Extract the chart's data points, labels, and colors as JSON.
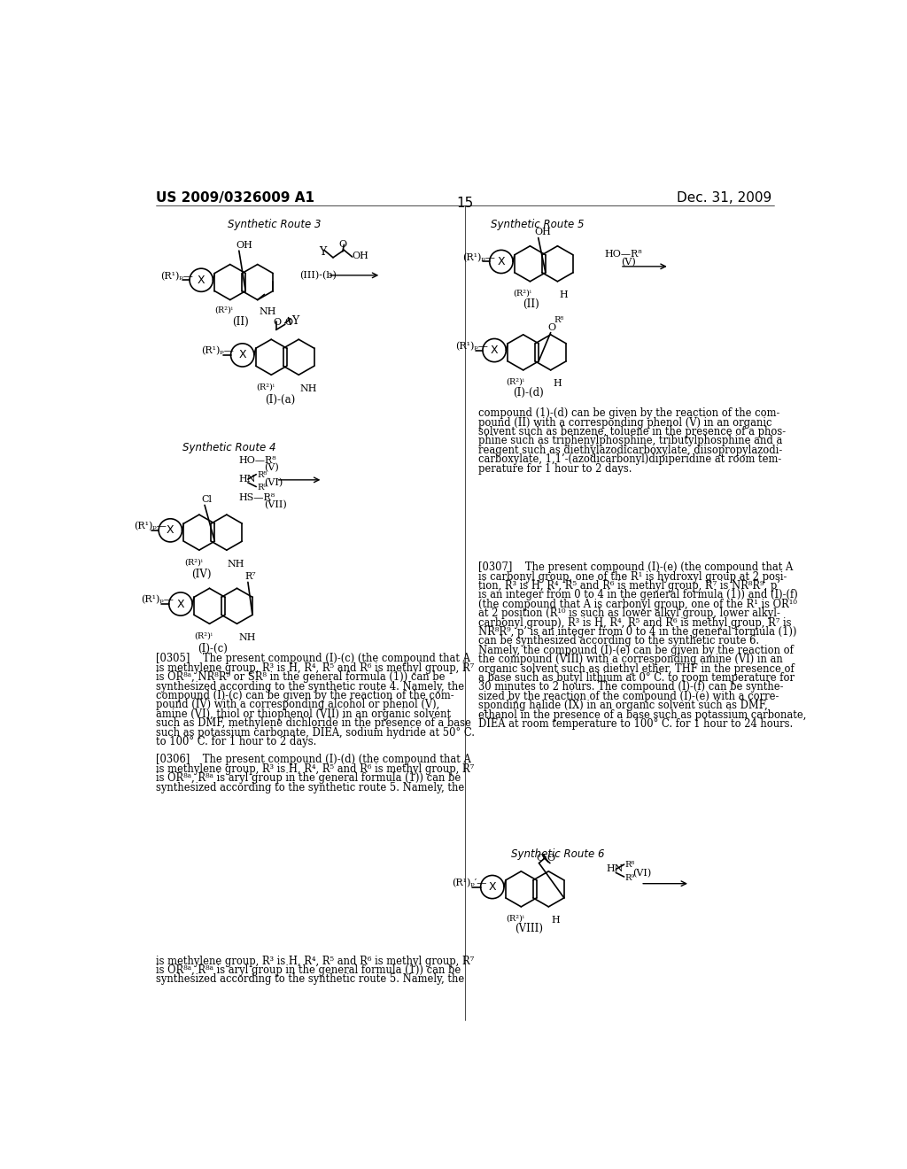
{
  "page_number": "15",
  "patent_number": "US 2009/0326009 A1",
  "date": "Dec. 31, 2009",
  "background_color": "#ffffff",
  "text_color": "#000000",
  "p305_lines": [
    "[0305]    The present compound (I)-(c) (the compound that A",
    "is methylene group, R³ is H, R⁴, R⁵ and R⁶ is methyl group, R⁷",
    "is OR⁸ᵃ, NR⁸R⁹ or SR⁸ in the general formula (1)) can be",
    "synthesized according to the synthetic route 4. Namely, the",
    "compound (I)-(c) can be given by the reaction of the com-",
    "pound (IV) with a corresponding alcohol or phenol (V),",
    "amine (VI), thiol or thiophenol (VII) in an organic solvent",
    "such as DMF, methylene dichloride in the presence of a base",
    "such as potassium carbonate, DIEA, sodium hydride at 50° C.",
    "to 100° C. for 1 hour to 2 days."
  ],
  "p306_lines": [
    "[0306]    The present compound (I)-(d) (the compound that A",
    "is methylene group, R³ is H, R⁴, R⁵ and R⁶ is methyl group, R⁷",
    "is OR⁸ᵃ, R⁸ᵃ is aryl group in the general formula (1)) can be",
    "synthesized according to the synthetic route 5. Namely, the"
  ],
  "p306b_lines": [
    "is methylene group, R³ is H, R⁴, R⁵ and R⁶ is methyl group, R⁷",
    "is OR⁸ᵃ, R⁸ᵃ is aryl group in the general formula (1)) can be",
    "synthesized according to the synthetic route 5. Namely, the"
  ],
  "p306r_lines": [
    "compound (1)-(d) can be given by the reaction of the com-",
    "pound (II) with a corresponding phenol (V) in an organic",
    "solvent such as benzene, toluene in the presence of a phos-",
    "phine such as triphenylphosphine, tributylphosphine and a",
    "reagent such as diethylazodicarboxylate, diisopropylazodi-",
    "carboxylate, 1,1’-(azodicarbonyl)dipiperidine at room tem-",
    "perature for 1 hour to 2 days."
  ],
  "p307_lines": [
    "[0307]    The present compound (I)-(e) (the compound that A",
    "is carbonyl group, one of the R¹ is hydroxyl group at 2 posi-",
    "tion, R³ is H, R⁴, R⁵ and R⁶ is methyl group, R⁷ is NR⁸R⁹, p’",
    "is an integer from 0 to 4 in the general formula (1)) and (I)-(f)",
    "(the compound that A is carbonyl group, one of the R¹ is OR¹⁰",
    "at 2 position (R¹⁰ is such as lower alkyl group, lower alkyl-",
    "carbonyl group), R³ is H, R⁴, R⁵ and R⁶ is methyl group, R⁷ is",
    "NR⁸R⁹, p’ is an integer from 0 to 4 in the general formula (1))",
    "can be synthesized according to the synthetic route 6.",
    "Namely, the compound (I)-(e) can be given by the reaction of",
    "the compound (VIII) with a corresponding amine (VI) in an",
    "organic solvent such as diethyl ether, THF in the presence of",
    "a base such as butyl lithium at 0° C. to room temperature for",
    "30 minutes to 2 hours. The compound (I)-(f) can be synthe-",
    "sized by the reaction of the compound (I)-(e) with a corre-",
    "sponding halide (IX) in an organic solvent such as DMF,",
    "ethanol in the presence of a base such as potassium carbonate,",
    "DIEA at room temperature to 100° C. for 1 hour to 24 hours."
  ],
  "r1p": "(R¹)ₚ—",
  "r1p_prime": "(R¹)ₚ′—",
  "r2q": "(R²)ⁱ",
  "r3": "R³",
  "r7": "R⁷",
  "r8": "R⁸",
  "r9": "R⁹",
  "ho_r8": "HO—R⁸",
  "hs_r8": "HS—R⁸",
  "hn": "HN",
  "oh": "OH",
  "sr3_title": "Synthetic Route 3",
  "sr4_title": "Synthetic Route 4",
  "sr5_title": "Synthetic Route 5",
  "sr6_title": "Synthetic Route 6",
  "iii_b": "(III)-(b)",
  "v_label": "(V)",
  "vi_label": "(VI)",
  "vii_label": "(VII)",
  "ii_label": "(II)",
  "iv_label": "(IV)",
  "ia_label": "(I)-(a)",
  "ic_label": "(I)-(c)",
  "id_label": "(I)-(d)",
  "viii_label": "(VIII)",
  "x_label": "X",
  "y_label": "Y",
  "nh": "NH",
  "h_label": "H",
  "cl_label": "Cl",
  "o_label": "O",
  "oh_label": "OH"
}
